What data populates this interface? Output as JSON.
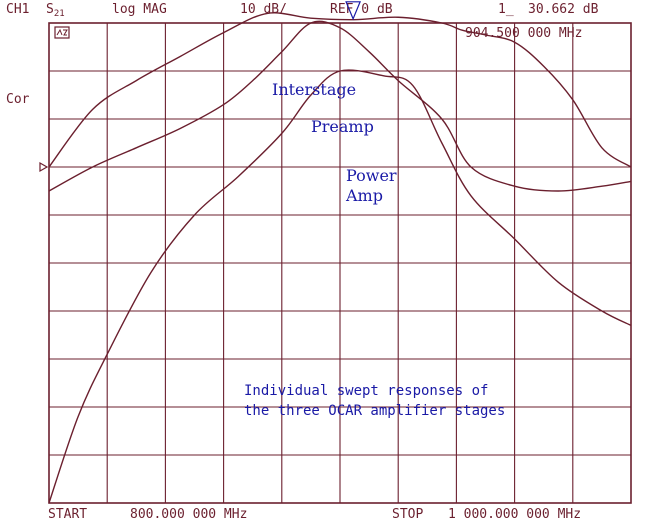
{
  "header": {
    "channel": "CH1",
    "param_main": "S",
    "param_sub": "21",
    "format": "log MAG",
    "scale": "10 dB/",
    "reference": "REF 0 dB",
    "marker_readout": "30.662 dB",
    "marker_frequency": "904.500 000 MHz",
    "correction": "Cor"
  },
  "footer": {
    "start_label": "START",
    "start_value": "800.000 000 MHz",
    "stop_label": "STOP",
    "stop_value": "1 000.000 000 MHz"
  },
  "annotations": {
    "interstage": "Interstage",
    "preamp": "Preamp",
    "power_line1": "Power",
    "power_line2": "Amp",
    "caption_line1": "Individual swept responses of",
    "caption_line2": "the three OCAR amplifier stages"
  },
  "chart_data": {
    "type": "line",
    "x_unit": "MHz",
    "xlim": [
      800,
      1000
    ],
    "y_unit": "dB",
    "ylim": [
      -70,
      30
    ],
    "ref_level": 0,
    "marker": {
      "x": 904.5,
      "y": 30.662
    },
    "grid": true,
    "colors": {
      "trace": "#6b1f2e",
      "grid": "#6b1f2e",
      "annotation": "#1a1aa6"
    },
    "series": [
      {
        "name": "Interstage",
        "x": [
          800,
          815,
          830,
          845,
          860,
          875,
          890,
          905,
          920,
          935,
          942,
          950,
          960,
          970,
          980,
          990,
          1000
        ],
        "y": [
          0,
          12,
          18,
          23,
          28,
          32,
          31,
          30.7,
          31.2,
          30,
          28.5,
          27.5,
          26,
          21,
          14,
          4,
          0
        ]
      },
      {
        "name": "Preamp",
        "x": [
          800,
          815,
          830,
          845,
          860,
          870,
          880,
          890,
          900,
          910,
          920,
          935,
          945,
          960,
          975,
          990,
          1000
        ],
        "y": [
          -5,
          0,
          4,
          8,
          13,
          18,
          24,
          30,
          29,
          24,
          18,
          10,
          0,
          -4,
          -5,
          -4,
          -3
        ]
      },
      {
        "name": "Power Amp",
        "x": [
          800,
          810,
          820,
          835,
          850,
          865,
          880,
          890,
          900,
          915,
          925,
          935,
          945,
          960,
          975,
          990,
          1000
        ],
        "y": [
          -70,
          -52,
          -39,
          -22,
          -10,
          -2,
          7,
          15,
          20,
          19,
          17,
          5,
          -6,
          -15,
          -24,
          -30,
          -33
        ]
      }
    ]
  }
}
